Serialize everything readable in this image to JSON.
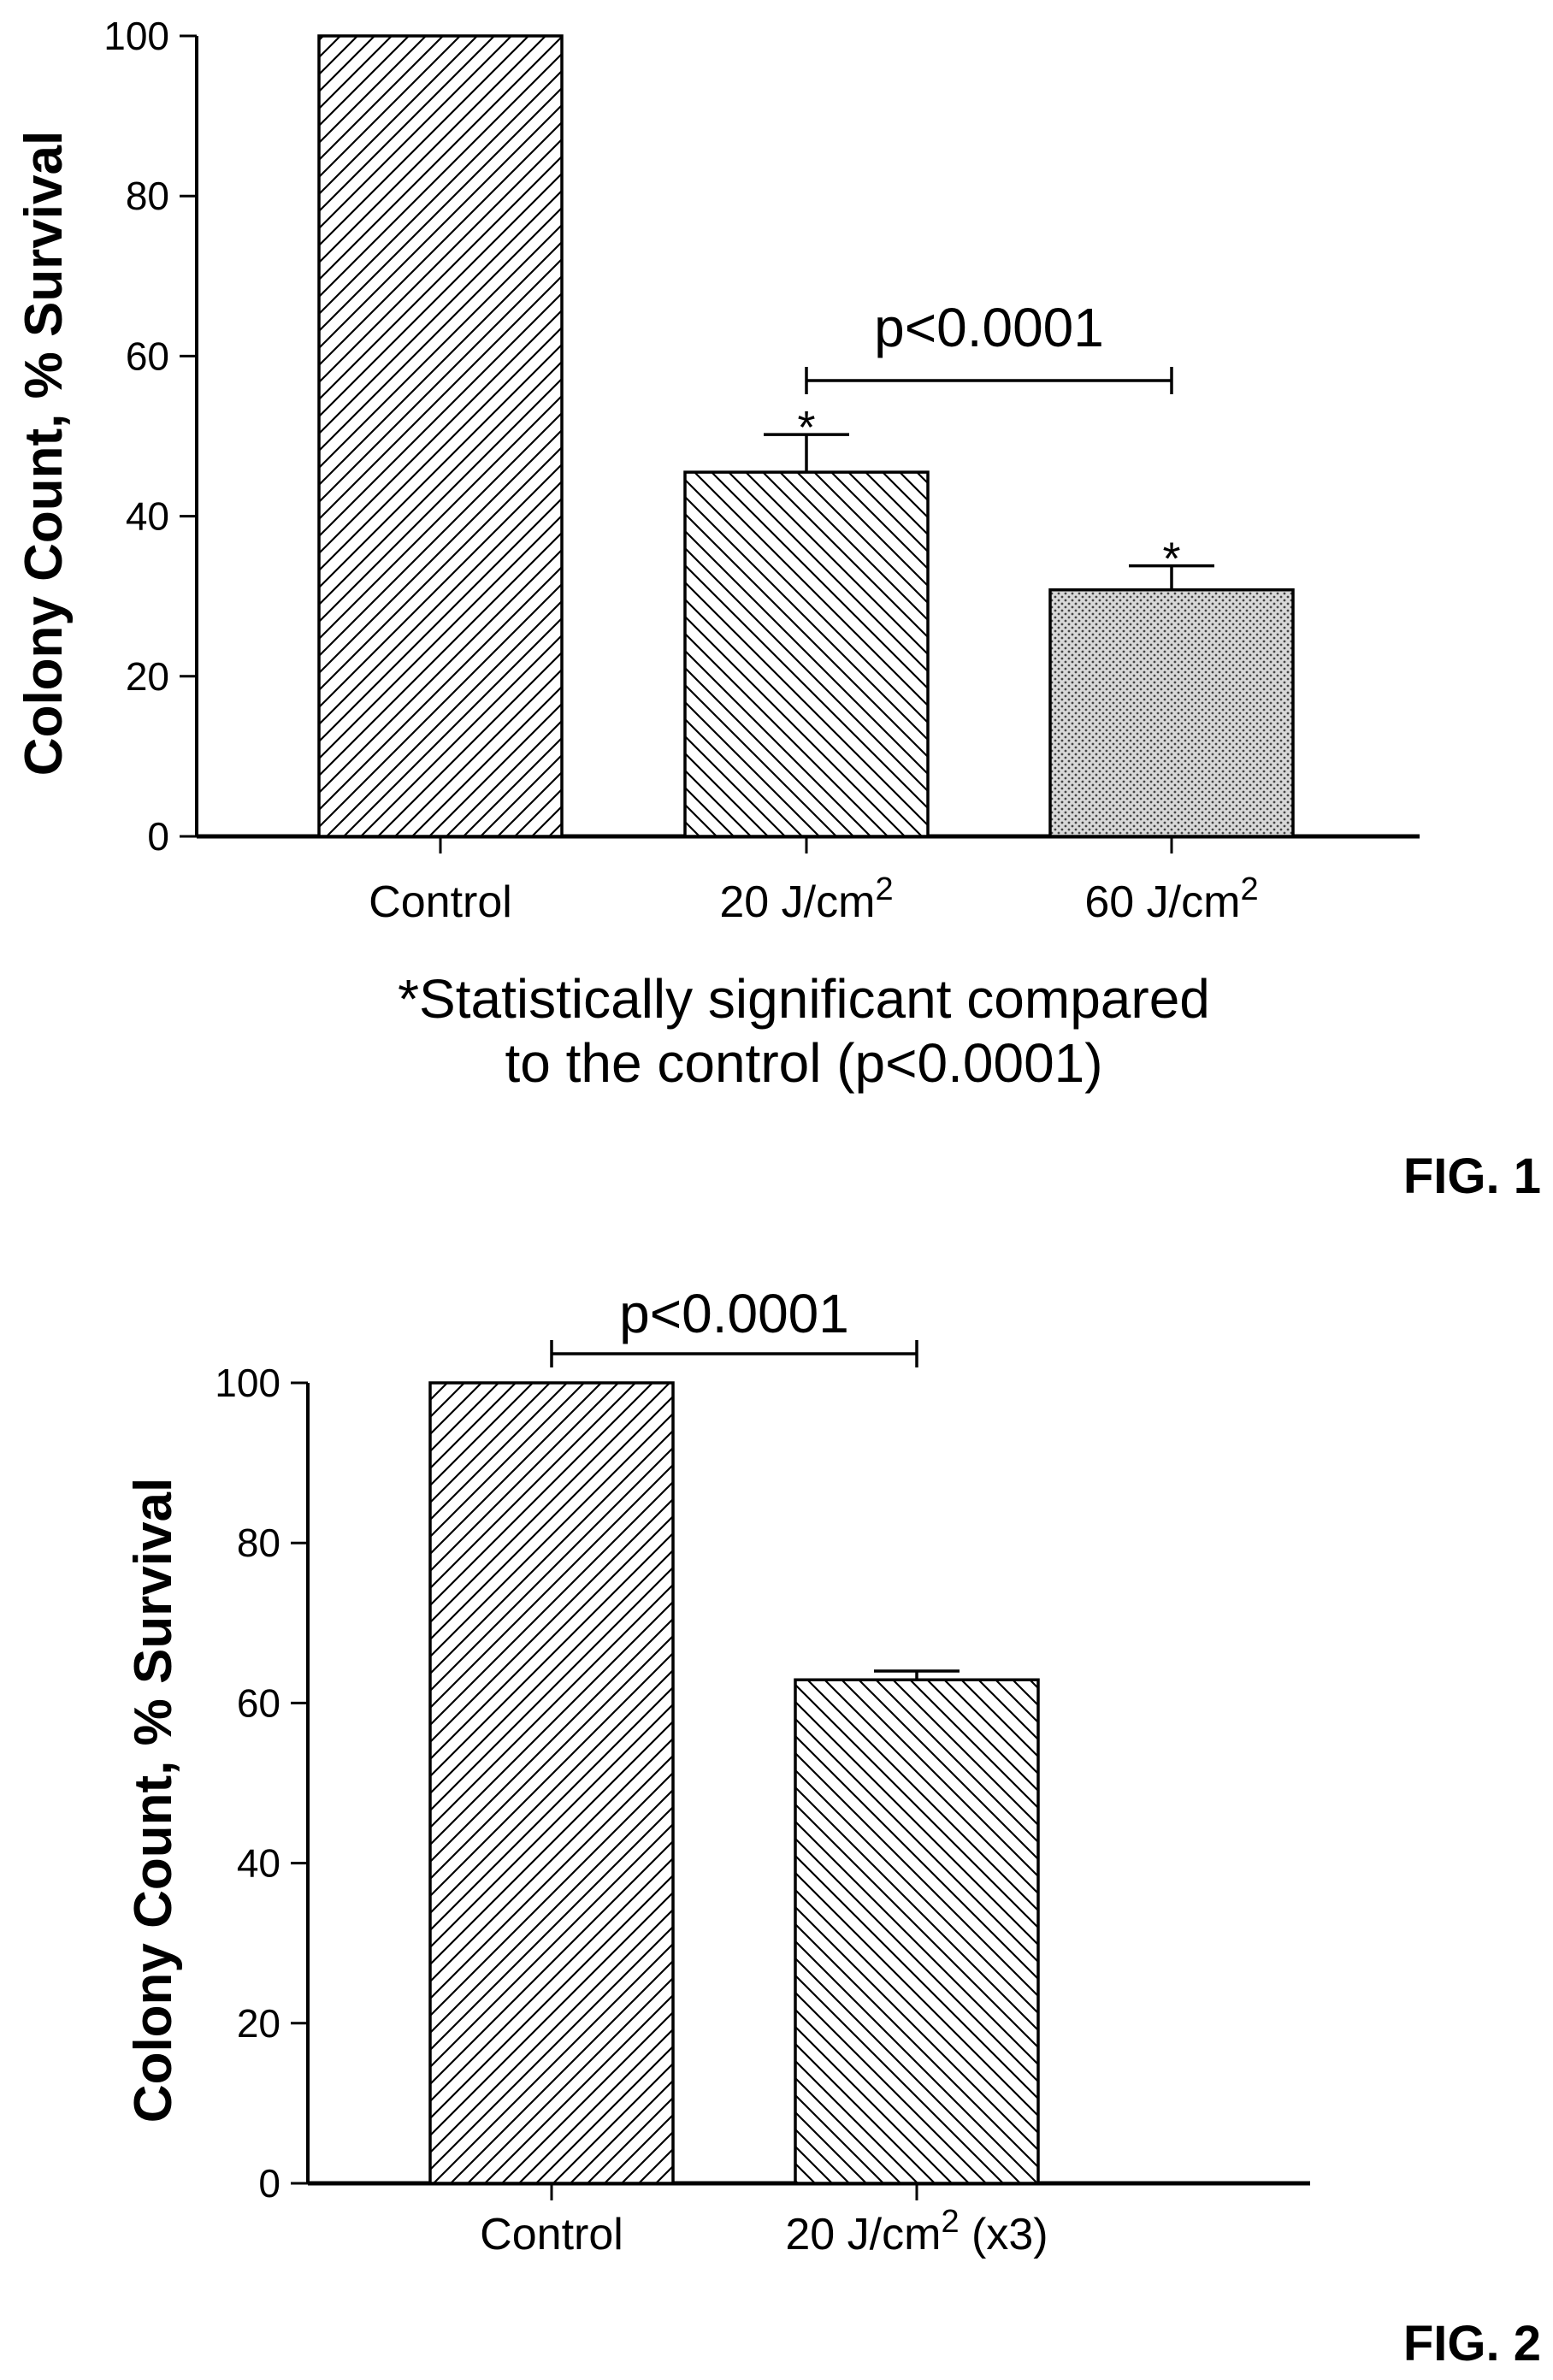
{
  "chart_data": [
    {
      "type": "bar",
      "figure_label": "FIG. 1",
      "ylabel": "Colony Count, % Survival",
      "ylim": [
        0,
        100
      ],
      "yticks": [
        "0",
        "20",
        "40",
        "60",
        "80",
        "100"
      ],
      "categories": [
        {
          "base": "Control",
          "sup": "",
          "suffix": ""
        },
        {
          "base": "20 J/cm",
          "sup": "2",
          "suffix": ""
        },
        {
          "base": "60 J/cm",
          "sup": "2",
          "suffix": ""
        }
      ],
      "values": [
        100,
        45.5,
        30.8
      ],
      "error_upper": [
        null,
        50.2,
        33.8
      ],
      "significance_markers": [
        "",
        "*",
        "*"
      ],
      "fill_patterns": [
        "diagonal-up",
        "diagonal-down",
        "dotted"
      ],
      "comparison": {
        "from": 1,
        "to": 2,
        "label": "p<0.0001"
      },
      "footnote": [
        "*Statistically significant compared",
        "to the control (p<0.0001)"
      ]
    },
    {
      "type": "bar",
      "figure_label": "FIG. 2",
      "ylabel": "Colony Count, % Survival",
      "ylim": [
        0,
        100
      ],
      "yticks": [
        "0",
        "20",
        "40",
        "60",
        "80",
        "100"
      ],
      "categories": [
        {
          "base": "Control",
          "sup": "",
          "suffix": ""
        },
        {
          "base": "20 J/cm",
          "sup": "2",
          "suffix": " (x3)"
        }
      ],
      "values": [
        100,
        62.9
      ],
      "error_upper": [
        null,
        64.0
      ],
      "significance_markers": [
        "",
        ""
      ],
      "fill_patterns": [
        "diagonal-up",
        "diagonal-down"
      ],
      "comparison": {
        "from": 0,
        "to": 1,
        "label": "p<0.0001"
      },
      "footnote": []
    }
  ]
}
